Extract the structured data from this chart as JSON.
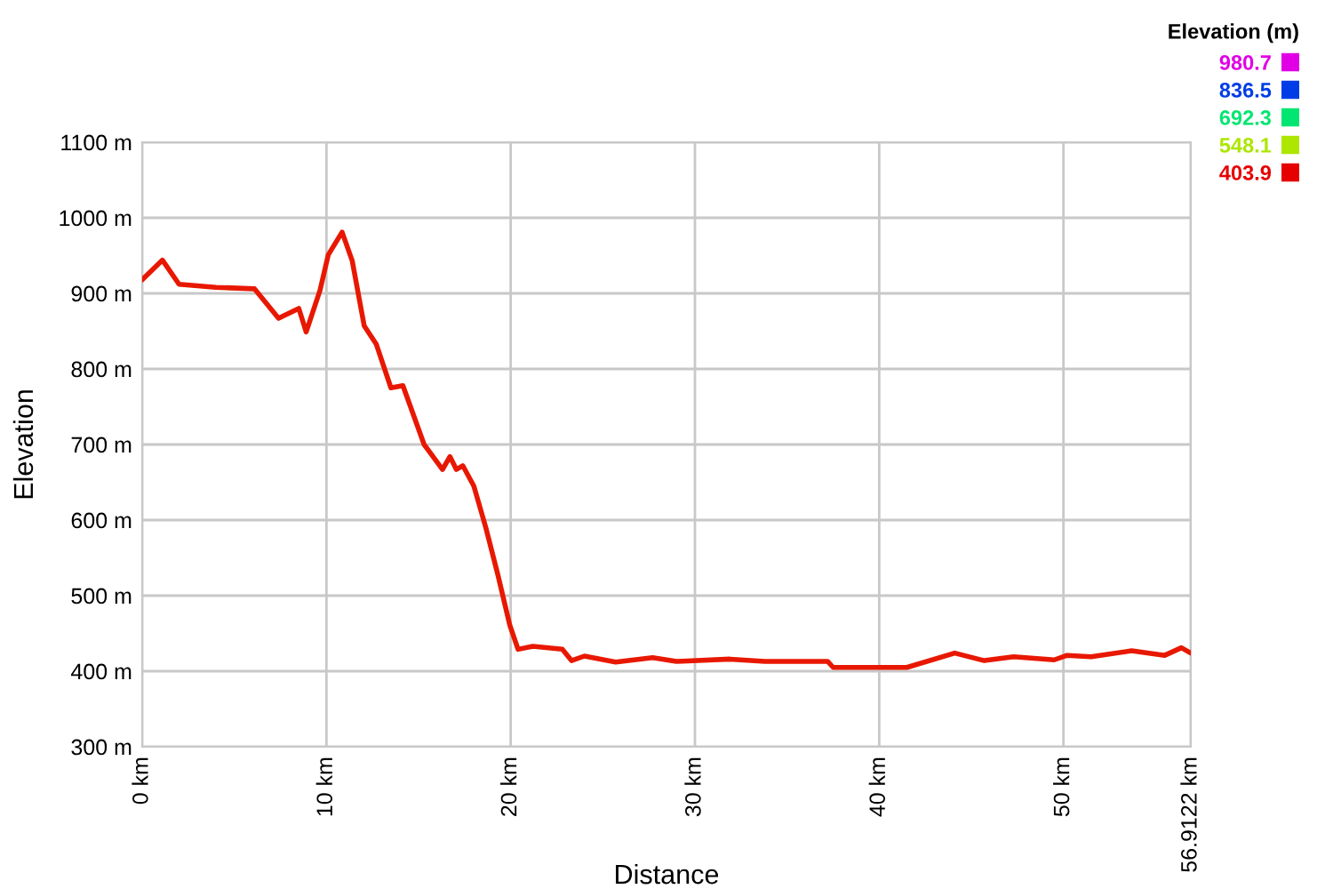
{
  "chart_data": {
    "type": "line",
    "xlabel": "Distance",
    "ylabel": "Elevation",
    "clabel": "Elevation (m)",
    "x": [
      0,
      1.1,
      2.0,
      4.0,
      6.1,
      7.4,
      8.5,
      8.9,
      9.65,
      10.1,
      10.85,
      11.4,
      12.05,
      12.7,
      13.5,
      14.15,
      15.3,
      16.3,
      16.7,
      17.05,
      17.4,
      18.0,
      18.65,
      19.3,
      19.95,
      20.4,
      21.2,
      22.8,
      23.3,
      24.0,
      25.7,
      27.7,
      29.0,
      31.9,
      33.8,
      37.2,
      37.5,
      41.5,
      44.1,
      45.7,
      47.3,
      49.5,
      50.2,
      51.5,
      53.7,
      55.5,
      56.4,
      56.9122
    ],
    "values": [
      918,
      944,
      912,
      908,
      906,
      867,
      880,
      849,
      904,
      951,
      981,
      943,
      857,
      833,
      775,
      778,
      700,
      667,
      684,
      667,
      672,
      645,
      590,
      528,
      461,
      429,
      433,
      429,
      414,
      420,
      412,
      418,
      413,
      416,
      413,
      413,
      405,
      405,
      424,
      414,
      419,
      415,
      421,
      419,
      427,
      421,
      431,
      424
    ],
    "xlim": [
      0,
      56.9122
    ],
    "xticks": [
      {
        "value": 0,
        "label": "0 km"
      },
      {
        "value": 10,
        "label": "10 km"
      },
      {
        "value": 20,
        "label": "20 km"
      },
      {
        "value": 30,
        "label": "30 km"
      },
      {
        "value": 40,
        "label": "40 km"
      },
      {
        "value": 50,
        "label": "50 km"
      },
      {
        "value": 56.9122,
        "label": "56.9122 km"
      }
    ],
    "ylim": [
      300,
      1100
    ],
    "yticks": [
      {
        "value": 300,
        "label": "300 m"
      },
      {
        "value": 400,
        "label": "400 m"
      },
      {
        "value": 500,
        "label": "500 m"
      },
      {
        "value": 600,
        "label": "600 m"
      },
      {
        "value": 700,
        "label": "700 m"
      },
      {
        "value": 800,
        "label": "800 m"
      },
      {
        "value": 900,
        "label": "900 m"
      },
      {
        "value": 1000,
        "label": "1000 m"
      },
      {
        "value": 1100,
        "label": "1100 m"
      }
    ],
    "color": "#e81800",
    "clim": [
      403.9,
      980.7
    ],
    "cticks": [
      980.7,
      836.5,
      692.3,
      548.1,
      403.9
    ],
    "grid": true
  }
}
